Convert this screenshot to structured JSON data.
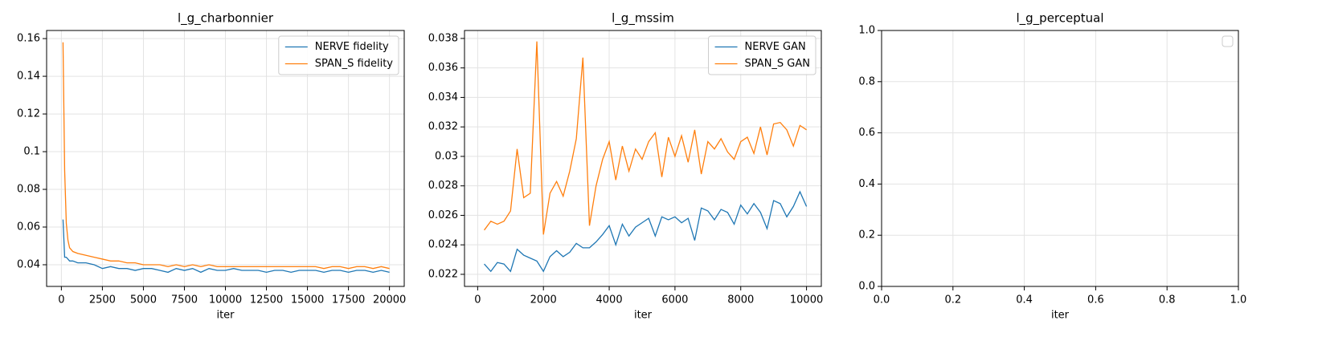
{
  "chart_data": [
    {
      "type": "line",
      "title": "l_g_charbonnier",
      "xlabel": "iter",
      "x": [
        100,
        200,
        300,
        400,
        500,
        700,
        1000,
        1500,
        2000,
        2500,
        3000,
        3500,
        4000,
        4500,
        5000,
        5500,
        6000,
        6500,
        7000,
        7500,
        8000,
        8500,
        9000,
        9500,
        10000,
        10500,
        11000,
        11500,
        12000,
        12500,
        13000,
        13500,
        14000,
        14500,
        15000,
        15500,
        16000,
        16500,
        17000,
        17500,
        18000,
        18500,
        19000,
        19500,
        20000
      ],
      "series": [
        {
          "name": "NERVE fidelity",
          "color": "#1f77b4",
          "values": [
            0.064,
            0.044,
            0.044,
            0.043,
            0.042,
            0.042,
            0.041,
            0.041,
            0.04,
            0.038,
            0.039,
            0.038,
            0.038,
            0.037,
            0.038,
            0.038,
            0.037,
            0.036,
            0.038,
            0.037,
            0.038,
            0.036,
            0.038,
            0.037,
            0.037,
            0.038,
            0.037,
            0.037,
            0.037,
            0.036,
            0.037,
            0.037,
            0.036,
            0.037,
            0.037,
            0.037,
            0.036,
            0.037,
            0.037,
            0.036,
            0.037,
            0.037,
            0.036,
            0.037,
            0.036
          ]
        },
        {
          "name": "SPAN_S fidelity",
          "color": "#ff7f0e",
          "values": [
            0.158,
            0.09,
            0.062,
            0.053,
            0.049,
            0.047,
            0.046,
            0.045,
            0.044,
            0.043,
            0.042,
            0.042,
            0.041,
            0.041,
            0.04,
            0.04,
            0.04,
            0.039,
            0.04,
            0.039,
            0.04,
            0.039,
            0.04,
            0.039,
            0.039,
            0.039,
            0.039,
            0.039,
            0.039,
            0.039,
            0.039,
            0.039,
            0.039,
            0.039,
            0.039,
            0.039,
            0.038,
            0.039,
            0.039,
            0.038,
            0.039,
            0.039,
            0.038,
            0.039,
            0.038
          ]
        }
      ],
      "xlim": [
        -900,
        20900
      ],
      "ylim": [
        0.0285,
        0.1643
      ],
      "xticks": [
        0,
        2500,
        5000,
        7500,
        10000,
        12500,
        15000,
        17500,
        20000
      ],
      "yticks": [
        0.04,
        0.06,
        0.08,
        0.1,
        0.12,
        0.14,
        0.16
      ],
      "grid": true,
      "legend": "upper right"
    },
    {
      "type": "line",
      "title": "l_g_mssim",
      "xlabel": "iter",
      "x": [
        200,
        400,
        600,
        800,
        1000,
        1200,
        1400,
        1600,
        1800,
        2000,
        2200,
        2400,
        2600,
        2800,
        3000,
        3200,
        3400,
        3600,
        3800,
        4000,
        4200,
        4400,
        4600,
        4800,
        5000,
        5200,
        5400,
        5600,
        5800,
        6000,
        6200,
        6400,
        6600,
        6800,
        7000,
        7200,
        7400,
        7600,
        7800,
        8000,
        8200,
        8400,
        8600,
        8800,
        9000,
        9200,
        9400,
        9600,
        9800,
        10000
      ],
      "series": [
        {
          "name": "NERVE GAN",
          "color": "#1f77b4",
          "values": [
            0.0227,
            0.0222,
            0.0228,
            0.0227,
            0.0222,
            0.0237,
            0.0233,
            0.0231,
            0.0229,
            0.0222,
            0.0232,
            0.0236,
            0.0232,
            0.0235,
            0.0241,
            0.0238,
            0.0238,
            0.0242,
            0.0247,
            0.0253,
            0.024,
            0.0254,
            0.0246,
            0.0252,
            0.0255,
            0.0258,
            0.0246,
            0.0259,
            0.0257,
            0.0259,
            0.0255,
            0.0258,
            0.0243,
            0.0265,
            0.0263,
            0.0257,
            0.0264,
            0.0262,
            0.0254,
            0.0267,
            0.0261,
            0.0268,
            0.0262,
            0.0251,
            0.027,
            0.0268,
            0.0259,
            0.0266,
            0.0276,
            0.0266
          ]
        },
        {
          "name": "SPAN_S GAN",
          "color": "#ff7f0e",
          "values": [
            0.025,
            0.0256,
            0.0254,
            0.0256,
            0.0263,
            0.0305,
            0.0272,
            0.0275,
            0.0378,
            0.0247,
            0.0275,
            0.0283,
            0.0273,
            0.029,
            0.0312,
            0.0367,
            0.0253,
            0.028,
            0.0298,
            0.031,
            0.0284,
            0.0307,
            0.029,
            0.0305,
            0.0298,
            0.031,
            0.0316,
            0.0286,
            0.0313,
            0.03,
            0.0314,
            0.0296,
            0.0318,
            0.0288,
            0.031,
            0.0305,
            0.0312,
            0.0303,
            0.0298,
            0.031,
            0.0313,
            0.0302,
            0.032,
            0.0301,
            0.0322,
            0.0323,
            0.0318,
            0.0307,
            0.0321,
            0.0318
          ]
        }
      ],
      "xlim": [
        -400,
        10450
      ],
      "ylim": [
        0.02118,
        0.03854
      ],
      "xticks": [
        0,
        2000,
        4000,
        6000,
        8000,
        10000
      ],
      "yticks": [
        0.022,
        0.024,
        0.026,
        0.028,
        0.03,
        0.032,
        0.034,
        0.036,
        0.038
      ],
      "grid": true,
      "legend": "upper right"
    },
    {
      "type": "line",
      "title": "l_g_perceptual",
      "xlabel": "iter",
      "x": [],
      "series": [],
      "xlim": [
        0,
        1
      ],
      "ylim": [
        0,
        1
      ],
      "xticks": [
        {
          "value": 0,
          "label": "0.0"
        },
        {
          "value": 0.2,
          "label": "0.2"
        },
        {
          "value": 0.4,
          "label": "0.4"
        },
        {
          "value": 0.6,
          "label": "0.6"
        },
        {
          "value": 0.8,
          "label": "0.8"
        },
        {
          "value": 1,
          "label": "1.0"
        }
      ],
      "yticks": [
        {
          "value": 0,
          "label": "0.0"
        },
        {
          "value": 0.2,
          "label": "0.2"
        },
        {
          "value": 0.4,
          "label": "0.4"
        },
        {
          "value": 0.6,
          "label": "0.6"
        },
        {
          "value": 0.8,
          "label": "0.8"
        },
        {
          "value": 1,
          "label": "1.0"
        }
      ],
      "grid": true,
      "legend": "upper right"
    }
  ]
}
